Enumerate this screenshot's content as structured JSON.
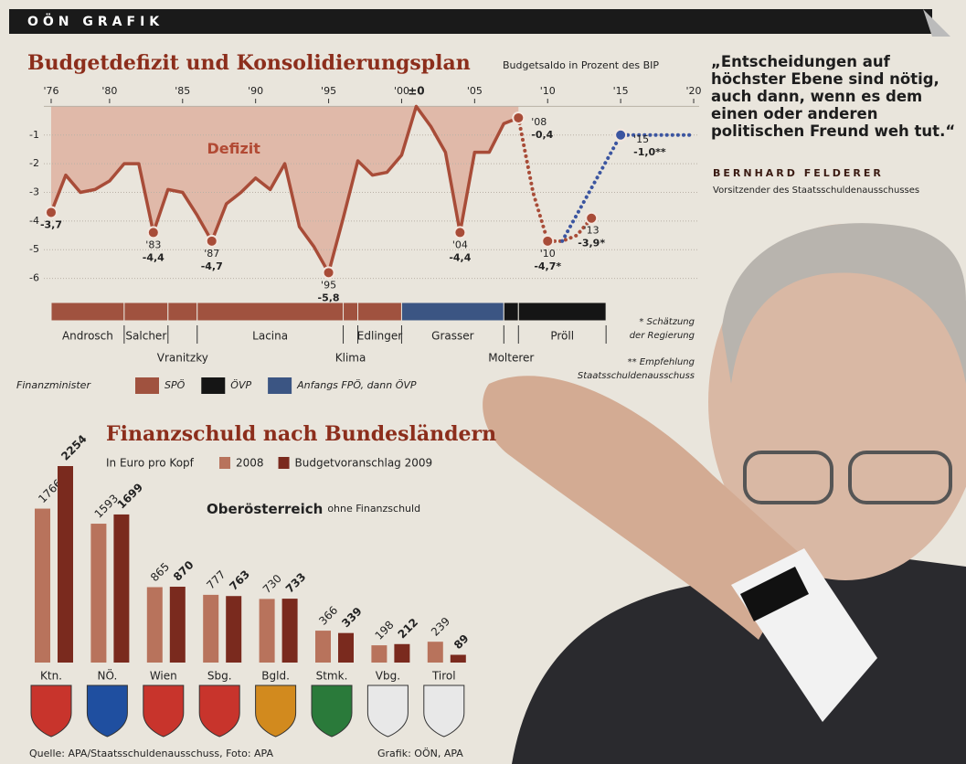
{
  "header": {
    "label": "OÖN GRAFIK"
  },
  "chart_data": [
    {
      "type": "line",
      "title": "Budgetdefizit und Konsolidierungsplan",
      "subtitle": "Budgetsaldo in Prozent des BIP",
      "area_label": "Defizit",
      "xlim": [
        1975,
        2021
      ],
      "xticks": [
        {
          "value": 1976,
          "label": "'76"
        },
        {
          "value": 1980,
          "label": "'80"
        },
        {
          "value": 1985,
          "label": "'85"
        },
        {
          "value": 1990,
          "label": "'90"
        },
        {
          "value": 1995,
          "label": "'95"
        },
        {
          "value": 2000,
          "label": "'00"
        },
        {
          "value": 2005,
          "label": "'05"
        },
        {
          "value": 2010,
          "label": "'10"
        },
        {
          "value": 2015,
          "label": "'15"
        },
        {
          "value": 2020,
          "label": "'20"
        }
      ],
      "ylim": [
        -6.3,
        0.3
      ],
      "yticks": [
        {
          "value": 0,
          "label": "±0"
        },
        -1,
        -2,
        -3,
        -4,
        -5,
        -6
      ],
      "grid": true,
      "marker_color": "#a84c38",
      "series": [
        {
          "color": "#a84c38",
          "dashed": false,
          "fill": true,
          "x": [
            1976,
            1977,
            1978,
            1979,
            1980,
            1981,
            1982,
            1983,
            1984,
            1985,
            1986,
            1987,
            1988,
            1989,
            1990,
            1991,
            1992,
            1993,
            1994,
            1995,
            1996,
            1997,
            1998,
            1999,
            2000,
            2001,
            2002,
            2003,
            2004,
            2005,
            2006,
            2007,
            2008
          ],
          "values": [
            -3.7,
            -2.4,
            -3.0,
            -2.9,
            -2.6,
            -2.0,
            -2.0,
            -4.4,
            -2.9,
            -3.0,
            -3.8,
            -4.7,
            -3.4,
            -3.0,
            -2.5,
            -2.9,
            -2.0,
            -4.2,
            -4.9,
            -5.8,
            -3.9,
            -1.9,
            -2.4,
            -2.3,
            -1.7,
            0,
            -0.7,
            -1.6,
            -4.4,
            -1.6,
            -1.6,
            -0.6,
            -0.4
          ]
        },
        {
          "color": "#a84c38",
          "dashed": true,
          "fill": false,
          "x": [
            2008,
            2009,
            2010,
            2011,
            2012,
            2013
          ],
          "values": [
            -0.4,
            -3.0,
            -4.7,
            -4.7,
            -4.5,
            -3.9
          ]
        },
        {
          "color": "#3b55a0",
          "dashed": true,
          "fill": false,
          "x": [
            2011,
            2015,
            2016,
            2017,
            2018,
            2019,
            2020
          ],
          "values": [
            -4.7,
            -1.0,
            -1.0,
            -1.0,
            -1.0,
            -1.0,
            -1.0
          ]
        }
      ],
      "annotations": [
        {
          "x": 1976,
          "y": -3.7,
          "label": "-3,7"
        },
        {
          "x": 1983,
          "y": -4.4,
          "year": "'83",
          "label": "-4,4"
        },
        {
          "x": 1987,
          "y": -4.7,
          "year": "'87",
          "label": "-4,7"
        },
        {
          "x": 1995,
          "y": -5.8,
          "year": "'95",
          "label": "-5,8"
        },
        {
          "x": 2004,
          "y": -4.4,
          "year": "'04",
          "label": "-4,4"
        },
        {
          "x": 2008,
          "y": -0.4,
          "year": "'08",
          "label": "-0,4"
        },
        {
          "x": 2010,
          "y": -4.7,
          "year": "'10",
          "label": "-4,7*"
        },
        {
          "x": 2013,
          "y": -3.9,
          "year": "'13",
          "label": "-3,9*"
        },
        {
          "x": 2015,
          "y": -1.0,
          "year": "'15",
          "label": "-1,0**",
          "color": "#3b55a0"
        }
      ],
      "ministers": {
        "label": "Finanzminister",
        "parties": [
          {
            "name": "SPÖ",
            "color": "#a0523f"
          },
          {
            "name": "ÖVP",
            "color": "#151515"
          },
          {
            "name": "Anfangs FPÖ, dann ÖVP",
            "color": "#3b5583"
          }
        ],
        "terms": [
          {
            "name": "Androsch",
            "start": 1976,
            "end": 1981,
            "party": "SPÖ"
          },
          {
            "name": "Salcher",
            "start": 1981,
            "end": 1984,
            "party": "SPÖ"
          },
          {
            "name": "Vranitzky",
            "start": 1984,
            "end": 1986,
            "party": "SPÖ"
          },
          {
            "name": "Lacina",
            "start": 1986,
            "end": 1996,
            "party": "SPÖ"
          },
          {
            "name": "Klima",
            "start": 1996,
            "end": 1997,
            "party": "SPÖ"
          },
          {
            "name": "Edlinger",
            "start": 1997,
            "end": 2000,
            "party": "SPÖ"
          },
          {
            "name": "Grasser",
            "start": 2000,
            "end": 2007,
            "party": "Anfangs FPÖ, dann ÖVP"
          },
          {
            "name": "Molterer",
            "start": 2007,
            "end": 2008,
            "party": "ÖVP"
          },
          {
            "name": "Pröll",
            "start": 2008,
            "end": 2014,
            "party": "ÖVP"
          }
        ]
      },
      "notes": [
        [
          "* Schätzung",
          "der Regierung"
        ],
        [
          "** Empfehlung",
          "Staatsschuldenausschuss"
        ]
      ]
    },
    {
      "type": "bar",
      "title": "Finanzschuld nach Bundesländern",
      "subtitle": "In Euro pro Kopf",
      "note": {
        "bold": "Oberösterreich",
        "text": "ohne Finanzschuld"
      },
      "categories": [
        "Ktn.",
        "NÖ.",
        "Wien",
        "Sbg.",
        "Bgld.",
        "Stmk.",
        "Vbg.",
        "Tirol"
      ],
      "series": [
        {
          "name": "2008",
          "color": "#b8735c",
          "values": [
            1766,
            1593,
            865,
            777,
            730,
            366,
            198,
            239
          ]
        },
        {
          "name": "Budgetvoranschlag 2009",
          "color": "#7a2a1e",
          "values": [
            2254,
            1699,
            870,
            763,
            733,
            339,
            212,
            89
          ]
        }
      ]
    }
  ],
  "quote": {
    "text": "„Entscheidungen auf höchster Ebene sind nötig, auch dann, wenn es dem einen oder anderen politischen Freund weh tut.“",
    "author": "BERNHARD FELDERER",
    "role": "Vorsitzender des Staatsschuldenausschusses"
  },
  "source": {
    "credit": "Quelle: APA/Staatsschuldenausschuss, Foto: APA",
    "graphic": "Grafik: OÖN, APA"
  }
}
